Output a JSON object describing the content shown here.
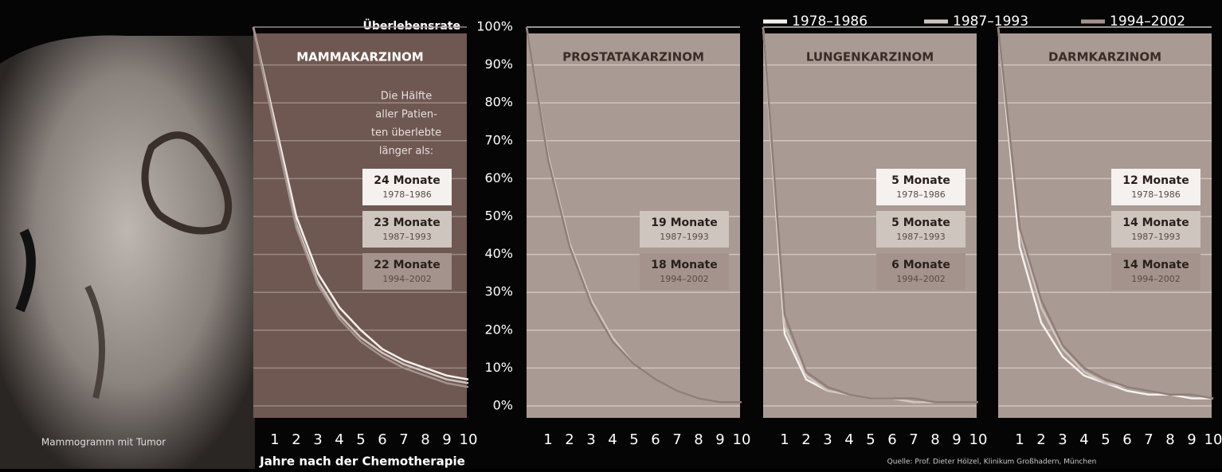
{
  "ylabel": "Überlebensrate",
  "xlabel": "Jahre nach der Chemotherapie",
  "image_caption": "Mammogramm mit Tumor",
  "source": "Quelle: Prof. Dieter Hölzel, Klinikum Großhadern, München",
  "note": [
    "Die Hälfte",
    "aller Patien-",
    "ten überlebte",
    "länger als:"
  ],
  "chart_data": [
    {
      "type": "line",
      "title": "MAMMAKARZINOM",
      "x": [
        0,
        1,
        2,
        3,
        4,
        5,
        6,
        7,
        8,
        9,
        10
      ],
      "xlim": [
        0,
        10
      ],
      "xticks": [
        1,
        2,
        3,
        4,
        5,
        6,
        7,
        8,
        9,
        10
      ],
      "ylim": [
        0,
        100
      ],
      "grid": true,
      "background": "#6f5852",
      "yticks": [
        {
          "value": 0,
          "label": "0%"
        },
        {
          "value": 10,
          "label": "10%"
        },
        {
          "value": 20,
          "label": "20%"
        },
        {
          "value": 30,
          "label": "30%"
        },
        {
          "value": 40,
          "label": "40%"
        },
        {
          "value": 50,
          "label": "50%"
        },
        {
          "value": 60,
          "label": "60%"
        },
        {
          "value": 70,
          "label": "70%"
        },
        {
          "value": 80,
          "label": "80%"
        },
        {
          "value": 90,
          "label": "90%"
        },
        {
          "value": 100,
          "label": "100%"
        }
      ],
      "series": [
        {
          "name": "1978–1986",
          "color": "#f4f1ee",
          "values": [
            100,
            75,
            50,
            35,
            26,
            20,
            15,
            12,
            10,
            8,
            7
          ]
        },
        {
          "name": "1987–1993",
          "color": "#cfc5bf",
          "values": [
            100,
            74,
            48,
            33,
            24,
            18,
            14,
            11,
            9,
            7,
            6
          ]
        },
        {
          "name": "1994–2002",
          "color": "#a3938c",
          "values": [
            100,
            73,
            47,
            32,
            23,
            17,
            13,
            10,
            8,
            6,
            5
          ]
        }
      ],
      "annotations": [
        {
          "text": "24 Monate",
          "period": "1978–1986"
        },
        {
          "text": "23 Monate",
          "period": "1987–1993"
        },
        {
          "text": "22 Monate",
          "period": "1994–2002"
        }
      ]
    },
    {
      "type": "line",
      "title": "PROSTATAKARZINOM",
      "x": [
        0,
        1,
        2,
        3,
        4,
        5,
        6,
        7,
        8,
        9,
        10
      ],
      "xlim": [
        0,
        10
      ],
      "xticks": [
        1,
        2,
        3,
        4,
        5,
        6,
        7,
        8,
        9,
        10
      ],
      "ylim": [
        0,
        100
      ],
      "grid": true,
      "background": "#a99a93",
      "series": [
        {
          "name": "1987–1993",
          "color": "#cfc5bf",
          "values": [
            100,
            66,
            43,
            28,
            18,
            11,
            7,
            4,
            2,
            1,
            1
          ]
        },
        {
          "name": "1994–2002",
          "color": "#8f7f78",
          "values": [
            100,
            65,
            42,
            27,
            17,
            11,
            7,
            4,
            2,
            1,
            1
          ]
        }
      ],
      "annotations": [
        {
          "text": "19 Monate",
          "period": "1987–1993"
        },
        {
          "text": "18 Monate",
          "period": "1994–2002"
        }
      ]
    },
    {
      "type": "line",
      "title": "LUNGENKARZINOM",
      "x": [
        0,
        1,
        2,
        3,
        4,
        5,
        6,
        7,
        8,
        9,
        10
      ],
      "xlim": [
        0,
        10
      ],
      "xticks": [
        1,
        2,
        3,
        4,
        5,
        6,
        7,
        8,
        9,
        10
      ],
      "ylim": [
        0,
        100
      ],
      "grid": true,
      "background": "#a99a93",
      "series": [
        {
          "name": "1978–1986",
          "color": "#f4f1ee",
          "values": [
            100,
            19,
            7,
            4,
            3,
            2,
            2,
            1,
            1,
            1,
            1
          ]
        },
        {
          "name": "1987–1993",
          "color": "#cfc5bf",
          "values": [
            100,
            21,
            8,
            4,
            3,
            2,
            2,
            1,
            1,
            1,
            1
          ]
        },
        {
          "name": "1994–2002",
          "color": "#8f7f78",
          "values": [
            100,
            24,
            9,
            5,
            3,
            2,
            2,
            2,
            1,
            1,
            1
          ]
        }
      ],
      "annotations": [
        {
          "text": "5 Monate",
          "period": "1978–1986"
        },
        {
          "text": "5 Monate",
          "period": "1987–1993"
        },
        {
          "text": "6 Monate",
          "period": "1994–2002"
        }
      ]
    },
    {
      "type": "line",
      "title": "DARMKARZINOM",
      "x": [
        0,
        1,
        2,
        3,
        4,
        5,
        6,
        7,
        8,
        9,
        10
      ],
      "xlim": [
        0,
        10
      ],
      "xticks": [
        1,
        2,
        3,
        4,
        5,
        6,
        7,
        8,
        9,
        10
      ],
      "ylim": [
        0,
        100
      ],
      "grid": true,
      "background": "#a99a93",
      "series": [
        {
          "name": "1978–1986",
          "color": "#f4f1ee",
          "values": [
            100,
            42,
            22,
            13,
            8,
            6,
            4,
            3,
            3,
            2,
            2
          ]
        },
        {
          "name": "1987–1993",
          "color": "#cfc5bf",
          "values": [
            100,
            46,
            26,
            15,
            9,
            6,
            5,
            4,
            3,
            3,
            2
          ]
        },
        {
          "name": "1994–2002",
          "color": "#8f7f78",
          "values": [
            100,
            47,
            28,
            16,
            10,
            7,
            5,
            4,
            3,
            3,
            2
          ]
        }
      ],
      "annotations": [
        {
          "text": "12 Monate",
          "period": "1978–1986"
        },
        {
          "text": "14 Monate",
          "period": "1987–1993"
        },
        {
          "text": "14 Monate",
          "period": "1994–2002"
        }
      ]
    }
  ]
}
